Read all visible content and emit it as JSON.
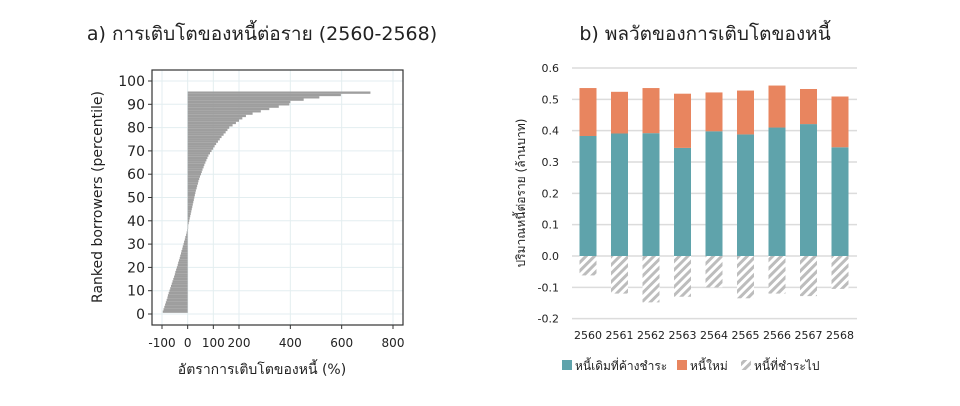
{
  "chart_data": [
    {
      "type": "bar",
      "orientation": "horizontal",
      "title": "a) การเติบโตของหนี้ต่อราย (2560-2568)",
      "xlabel": "อัตราการเติบโตของหนี้ (%)",
      "ylabel": "Ranked borrowers (percentile)",
      "xlim": [
        -115,
        835
      ],
      "ylim": [
        -3,
        103
      ],
      "xticks": [
        -100,
        0,
        100,
        200,
        400,
        600,
        800
      ],
      "yticks": [
        0,
        10,
        20,
        30,
        40,
        50,
        60,
        70,
        80,
        90,
        100
      ],
      "grid": true,
      "bar_color": "#9e9e9e",
      "percentiles_start": 1,
      "values": [
        -97,
        -94,
        -91,
        -88,
        -85,
        -82,
        -79,
        -77,
        -74,
        -71,
        -68,
        -65,
        -62,
        -59,
        -56,
        -53,
        -50,
        -48,
        -45,
        -42,
        -39,
        -37,
        -34,
        -31,
        -29,
        -26,
        -24,
        -21,
        -19,
        -16,
        -14,
        -11,
        -9,
        -6,
        -4,
        -2,
        0,
        2,
        4,
        6,
        8,
        10,
        12,
        14,
        16,
        18,
        20,
        22,
        24,
        26,
        28,
        30,
        32,
        35,
        37,
        40,
        42,
        45,
        48,
        52,
        55,
        58,
        62,
        65,
        69,
        73,
        77,
        81,
        87,
        93,
        99,
        105,
        111,
        118,
        125,
        132,
        140,
        148,
        155,
        162,
        175,
        188,
        200,
        213,
        227,
        253,
        285,
        318,
        355,
        396,
        400,
        452,
        513,
        597,
        712
      ]
    },
    {
      "type": "bar",
      "stacked": true,
      "title": "b) พลวัตของการเติบโตของหนี้",
      "ylabel": "ปริมาณหนี้ต่อราย (ล้านบาท)",
      "ylim": [
        -0.2,
        0.6
      ],
      "yticks": [
        "0.6",
        "0.5",
        "0.4",
        "0.3",
        "0.2",
        "0.1",
        "0.0",
        "-0.1",
        "-0.2"
      ],
      "grid": true,
      "legend_placement": "bottom",
      "categories": [
        "2560",
        "2561",
        "2562",
        "2563",
        "2564",
        "2565",
        "2566",
        "2567",
        "2568"
      ],
      "series": [
        {
          "name": "หนี้เดิมที่ค้างชำระ",
          "color": "#5fa3ab",
          "pattern": "solid",
          "values": [
            0.383,
            0.391,
            0.392,
            0.345,
            0.398,
            0.388,
            0.41,
            0.421,
            0.347
          ]
        },
        {
          "name": "หนี้ใหม่",
          "color": "#e8855f",
          "pattern": "solid",
          "values": [
            0.153,
            0.133,
            0.144,
            0.173,
            0.124,
            0.14,
            0.134,
            0.112,
            0.162
          ]
        },
        {
          "name": "หนี้ที่ชำระไป",
          "color": "#bdbdbd",
          "pattern": "hatched",
          "values": [
            -0.062,
            -0.12,
            -0.148,
            -0.13,
            -0.1,
            -0.135,
            -0.12,
            -0.128,
            -0.105
          ]
        }
      ]
    }
  ]
}
